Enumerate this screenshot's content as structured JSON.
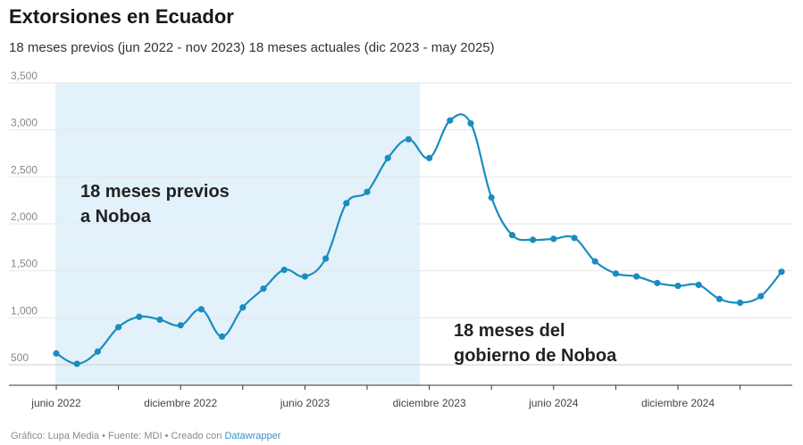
{
  "title": "Extorsiones en Ecuador",
  "subtitle": "18 meses previos (jun 2022 - nov 2023) 18 meses actuales (dic 2023 - may 2025)",
  "footer": {
    "text": "Gráfico: Lupa Media • Fuente: MDI • Creado con ",
    "link": "Datawrapper"
  },
  "chart_data": {
    "type": "line",
    "title": "Extorsiones en Ecuador",
    "xlabel": "",
    "ylabel": "",
    "ylim": [
      400,
      3500
    ],
    "yticks": [
      500,
      1000,
      1500,
      2000,
      2500,
      3000,
      3500
    ],
    "ytick_labels": [
      "500",
      "1,000",
      "1,500",
      "2,000",
      "2,500",
      "3,000",
      "3,500"
    ],
    "xticks": [
      {
        "index": 0,
        "label": "junio 2022"
      },
      {
        "index": 6,
        "label": "diciembre 2022"
      },
      {
        "index": 12,
        "label": "junio 2023"
      },
      {
        "index": 18,
        "label": "diciembre 2023"
      },
      {
        "index": 24,
        "label": "junio 2024"
      },
      {
        "index": 30,
        "label": "diciembre 2024"
      }
    ],
    "x": [
      "2022-06",
      "2022-07",
      "2022-08",
      "2022-09",
      "2022-10",
      "2022-11",
      "2022-12",
      "2023-01",
      "2023-02",
      "2023-03",
      "2023-04",
      "2023-05",
      "2023-06",
      "2023-07",
      "2023-08",
      "2023-09",
      "2023-10",
      "2023-11",
      "2023-12",
      "2024-01",
      "2024-02",
      "2024-03",
      "2024-04",
      "2024-05",
      "2024-06",
      "2024-07",
      "2024-08",
      "2024-09",
      "2024-10",
      "2024-11",
      "2024-12",
      "2025-01",
      "2025-02",
      "2025-03",
      "2025-04",
      "2025-05"
    ],
    "series": [
      {
        "values": [
          620,
          510,
          640,
          900,
          1010,
          980,
          920,
          1090,
          800,
          1110,
          1310,
          1510,
          1440,
          1630,
          2220,
          2340,
          2700,
          2900,
          2700,
          3100,
          3070,
          2280,
          1880,
          1830,
          1840,
          1850,
          1600,
          1470,
          1440,
          1370,
          1340,
          1350,
          1200,
          1160,
          1230,
          1490
        ],
        "color": "#1a8cbf"
      }
    ],
    "shaded_region": {
      "from": "2022-06",
      "to": "2023-11",
      "color": "#e3f1fa"
    },
    "annotations": [
      {
        "lines": [
          "18 meses previos",
          "a Noboa"
        ]
      },
      {
        "lines": [
          "18 meses del",
          "gobierno de Noboa"
        ]
      }
    ],
    "grid": true,
    "legend": "none"
  }
}
